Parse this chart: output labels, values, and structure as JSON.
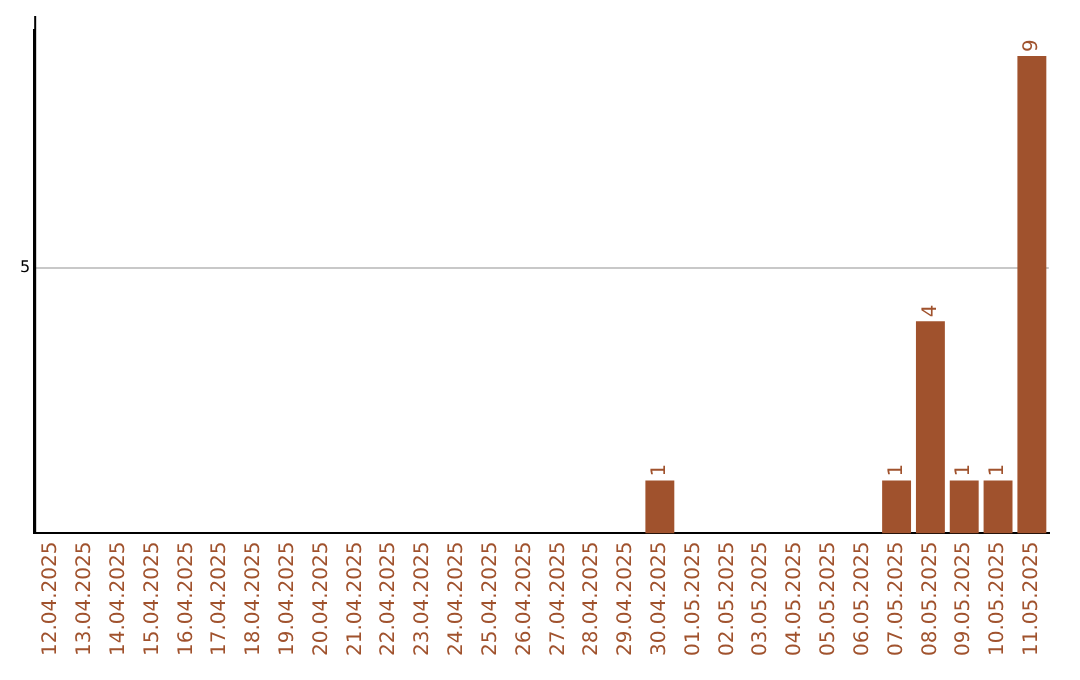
{
  "chart_data": {
    "type": "bar",
    "categories": [
      "12.04.2025",
      "13.04.2025",
      "14.04.2025",
      "15.04.2025",
      "16.04.2025",
      "17.04.2025",
      "18.04.2025",
      "19.04.2025",
      "20.04.2025",
      "21.04.2025",
      "22.04.2025",
      "23.04.2025",
      "24.04.2025",
      "25.04.2025",
      "26.04.2025",
      "27.04.2025",
      "28.04.2025",
      "29.04.2025",
      "30.04.2025",
      "01.05.2025",
      "02.05.2025",
      "03.05.2025",
      "04.05.2025",
      "05.05.2025",
      "06.05.2025",
      "07.05.2025",
      "08.05.2025",
      "09.05.2025",
      "10.05.2025",
      "11.05.2025"
    ],
    "values": [
      null,
      null,
      null,
      null,
      null,
      null,
      null,
      null,
      null,
      null,
      null,
      null,
      null,
      null,
      null,
      null,
      null,
      null,
      1,
      null,
      null,
      null,
      null,
      null,
      null,
      1,
      4,
      1,
      1,
      9
    ],
    "data_labels": true,
    "ylim": [
      0,
      9.5
    ],
    "yticks": [
      5
    ],
    "grid": "y",
    "color": "#a0522d",
    "legend": false
  }
}
